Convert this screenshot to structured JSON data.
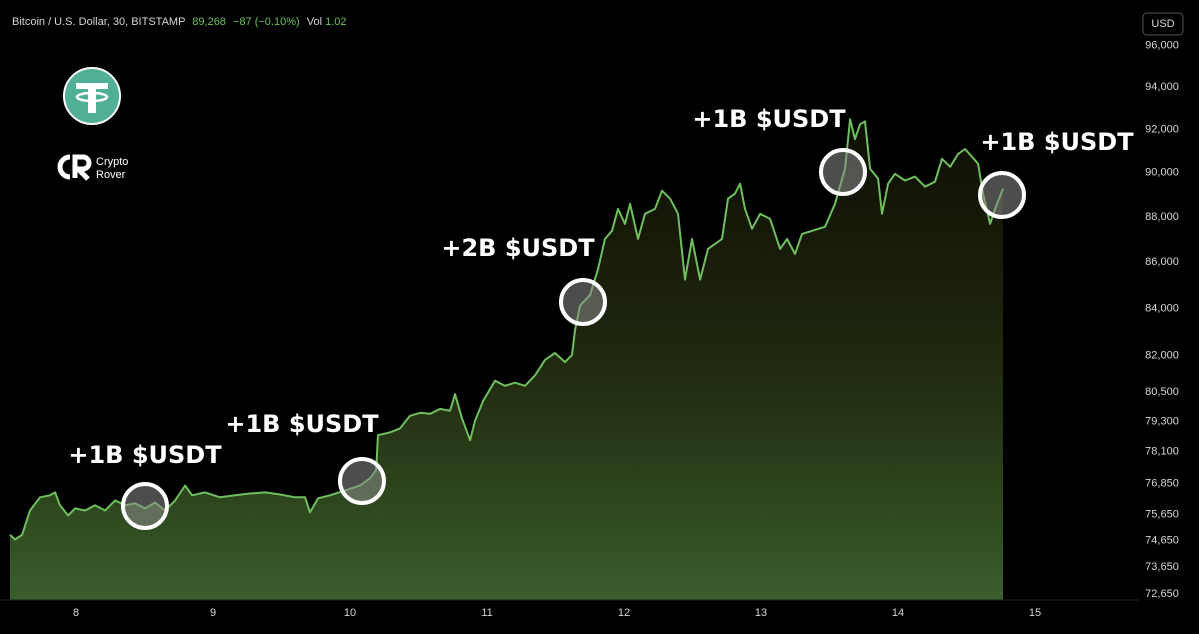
{
  "header": {
    "symbol": "Bitcoin / U.S. Dollar, 30, BITSTAMP",
    "price": "89,268",
    "change": "−87 (−0.10%)",
    "volume_label": "Vol",
    "volume": "1.02"
  },
  "currency": "USD",
  "logo": {
    "line1": "Crypto",
    "line2": "Rover"
  },
  "chart_data": {
    "type": "area",
    "color": "#6fbf5e",
    "log_scale": true,
    "grid": false,
    "x": [
      7.518,
      7.555,
      7.606,
      7.664,
      7.737,
      7.81,
      7.847,
      7.883,
      7.942,
      7.993,
      8.066,
      8.139,
      8.212,
      8.285,
      8.358,
      8.431,
      8.504,
      8.577,
      8.65,
      8.723,
      8.796,
      8.847,
      8.942,
      9.051,
      9.161,
      9.27,
      9.38,
      9.489,
      9.599,
      9.672,
      9.708,
      9.766,
      9.854,
      9.964,
      10.073,
      10.146,
      10.19,
      10.204,
      10.292,
      10.365,
      10.438,
      10.511,
      10.584,
      10.657,
      10.73,
      10.766,
      10.818,
      10.876,
      10.912,
      10.971,
      11.058,
      11.131,
      11.204,
      11.277,
      11.35,
      11.423,
      11.496,
      11.569,
      11.62,
      11.642,
      11.679,
      11.752,
      11.81,
      11.861,
      11.912,
      11.956,
      12.007,
      12.044,
      12.102,
      12.153,
      12.226,
      12.277,
      12.336,
      12.394,
      12.445,
      12.496,
      12.555,
      12.613,
      12.664,
      12.715,
      12.759,
      12.81,
      12.847,
      12.883,
      12.934,
      12.993,
      13.066,
      13.139,
      13.19,
      13.248,
      13.299,
      13.372,
      13.467,
      13.54,
      13.613,
      13.65,
      13.686,
      13.723,
      13.759,
      13.796,
      13.854,
      13.883,
      13.927,
      13.978,
      14.051,
      14.124,
      14.197,
      14.27,
      14.321,
      14.38,
      14.438,
      14.489,
      14.54,
      14.584,
      14.62,
      14.672,
      14.708,
      14.766
    ],
    "values": [
      74870,
      74690,
      74870,
      75800,
      76310,
      76390,
      76500,
      76000,
      75610,
      75880,
      75800,
      76000,
      75800,
      76190,
      76000,
      76080,
      75880,
      76110,
      75800,
      76190,
      76770,
      76390,
      76500,
      76310,
      76390,
      76460,
      76500,
      76420,
      76310,
      76310,
      75730,
      76270,
      76390,
      76580,
      76770,
      77050,
      77370,
      78760,
      78870,
      79030,
      79540,
      79660,
      79620,
      79820,
      79740,
      80420,
      79420,
      78560,
      79340,
      80140,
      80970,
      80760,
      80890,
      80760,
      81190,
      81830,
      82120,
      81740,
      82040,
      83080,
      84130,
      84580,
      85690,
      87020,
      87380,
      88360,
      87690,
      88590,
      87020,
      88140,
      88360,
      89180,
      88820,
      88140,
      85240,
      87020,
      85240,
      86580,
      86800,
      87020,
      88820,
      89050,
      89500,
      88360,
      87470,
      88140,
      87910,
      86580,
      87020,
      86360,
      87240,
      87380,
      87560,
      88590,
      90180,
      92480,
      91550,
      92240,
      92380,
      90180,
      89730,
      88140,
      89500,
      89950,
      89640,
      89820,
      89360,
      89590,
      90640,
      90270,
      90860,
      91090,
      90730,
      90410,
      89050,
      87690,
      88360,
      89268
    ],
    "xlim": [
      7.445,
      15.766
    ],
    "xticks": [
      8,
      9,
      10,
      11,
      12,
      13,
      14,
      15
    ],
    "ylim": [
      72430,
      96770
    ],
    "yticks": [
      {
        "value": 72650,
        "label": "72,650"
      },
      {
        "value": 73650,
        "label": "73,650"
      },
      {
        "value": 74650,
        "label": "74,650"
      },
      {
        "value": 75650,
        "label": "75,650"
      },
      {
        "value": 76850,
        "label": "76,850"
      },
      {
        "value": 78100,
        "label": "78,100"
      },
      {
        "value": 79300,
        "label": "79,300"
      },
      {
        "value": 80500,
        "label": "80,500"
      },
      {
        "value": 82000,
        "label": "82,000"
      },
      {
        "value": 84000,
        "label": "84,000"
      },
      {
        "value": 86000,
        "label": "86,000"
      },
      {
        "value": 88000,
        "label": "88,000"
      },
      {
        "value": 90000,
        "label": "90,000"
      },
      {
        "value": 92000,
        "label": "92,000"
      },
      {
        "value": 94000,
        "label": "94,000"
      },
      {
        "value": 96000,
        "label": "96,000"
      }
    ],
    "annotations": [
      "+1B $USDT",
      "+1B $USDT",
      "+2B $USDT",
      "+1B $USDT",
      "+1B $USDT"
    ]
  }
}
